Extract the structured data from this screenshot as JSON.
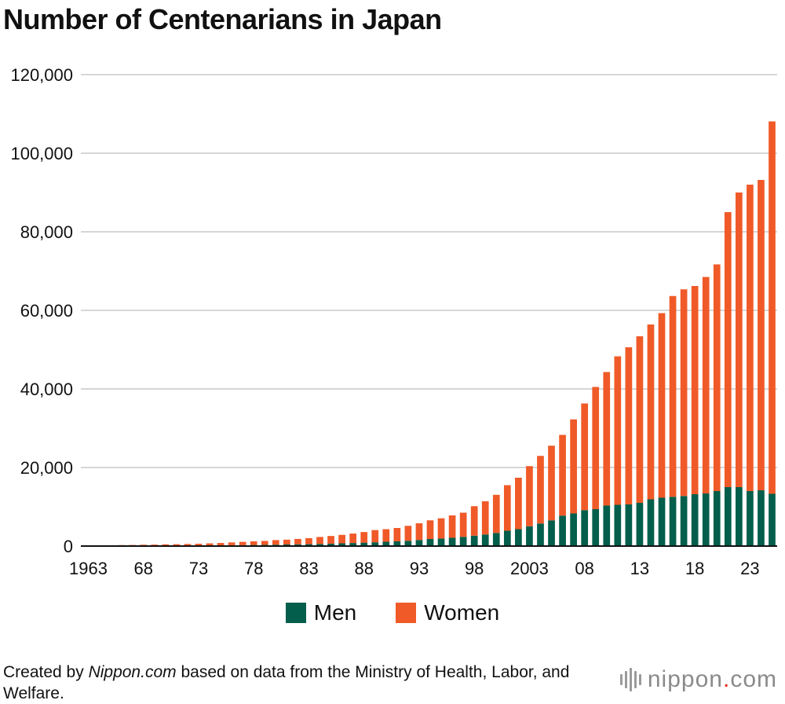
{
  "title": "Number of Centenarians in Japan",
  "legend": {
    "men": "Men",
    "women": "Women"
  },
  "source": {
    "prefix": "Created by ",
    "site": "Nippon.com",
    "suffix": " based on data from the Ministry of Health, Labor, and Welfare."
  },
  "brand": {
    "name": "nippon",
    "dot": ".",
    "tld": "com"
  },
  "colors": {
    "men": "#035e4b",
    "women": "#f05a28",
    "grid": "#c8c8c8",
    "axis": "#111111"
  },
  "chart_data": {
    "type": "bar",
    "stacked": true,
    "ylim": [
      0,
      120000
    ],
    "yticks": [
      0,
      20000,
      40000,
      60000,
      80000,
      100000,
      120000
    ],
    "ytick_labels": [
      "0",
      "20,000",
      "40,000",
      "60,000",
      "80,000",
      "100,000",
      "120,000"
    ],
    "xtick_labels": [
      {
        "year": 1963,
        "label": "1963"
      },
      {
        "year": 1968,
        "label": "68"
      },
      {
        "year": 1973,
        "label": "73"
      },
      {
        "year": 1978,
        "label": "78"
      },
      {
        "year": 1983,
        "label": "83"
      },
      {
        "year": 1988,
        "label": "88"
      },
      {
        "year": 1993,
        "label": "93"
      },
      {
        "year": 1998,
        "label": "98"
      },
      {
        "year": 2003,
        "label": "2003"
      },
      {
        "year": 2008,
        "label": "08"
      },
      {
        "year": 2013,
        "label": "13"
      },
      {
        "year": 2018,
        "label": "18"
      },
      {
        "year": 2023,
        "label": "23"
      }
    ],
    "grid": true,
    "legend_position": "bottom-center",
    "categories": [
      1963,
      1964,
      1965,
      1966,
      1967,
      1968,
      1969,
      1970,
      1971,
      1972,
      1973,
      1974,
      1975,
      1976,
      1977,
      1978,
      1979,
      1980,
      1981,
      1982,
      1983,
      1984,
      1985,
      1986,
      1987,
      1988,
      1989,
      1990,
      1991,
      1992,
      1993,
      1994,
      1995,
      1996,
      1997,
      1998,
      1999,
      2000,
      2001,
      2002,
      2003,
      2004,
      2005,
      2006,
      2007,
      2008,
      2009,
      2010,
      2011,
      2012,
      2013,
      2014,
      2015,
      2016,
      2017,
      2018,
      2019,
      2020,
      2021,
      2022,
      2023,
      2024,
      2025
    ],
    "series": [
      {
        "name": "Men",
        "values": [
          20,
          40,
          50,
          60,
          70,
          80,
          90,
          100,
          110,
          130,
          150,
          170,
          190,
          220,
          250,
          280,
          310,
          350,
          400,
          440,
          480,
          540,
          620,
          700,
          780,
          870,
          970,
          1100,
          1200,
          1350,
          1550,
          1800,
          1920,
          2100,
          2350,
          2650,
          2950,
          3350,
          3900,
          4300,
          5050,
          5750,
          6550,
          7750,
          8300,
          9150,
          9400,
          10300,
          10500,
          10600,
          11000,
          11900,
          12300,
          12550,
          12750,
          13200,
          13400,
          14000,
          15000,
          15000,
          14000,
          14200,
          13300
        ]
      },
      {
        "name": "Women",
        "values": [
          130,
          150,
          160,
          190,
          210,
          260,
          280,
          340,
          360,
          400,
          440,
          520,
          600,
          710,
          820,
          920,
          1000,
          1170,
          1230,
          1380,
          1540,
          1780,
          1950,
          2150,
          2400,
          2700,
          3100,
          3200,
          3400,
          3800,
          4250,
          4750,
          5150,
          5700,
          6150,
          7500,
          8450,
          9700,
          11600,
          13100,
          15300,
          17200,
          19000,
          20550,
          23950,
          27150,
          31100,
          34000,
          37800,
          40000,
          42400,
          44500,
          47000,
          51100,
          52600,
          53000,
          55100,
          57700,
          70000,
          75000,
          78000,
          79000,
          94800
        ]
      }
    ]
  }
}
